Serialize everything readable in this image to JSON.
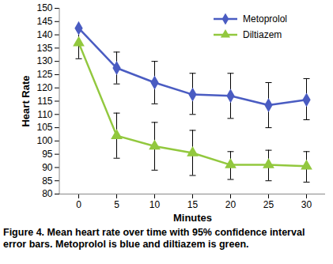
{
  "chart_data": {
    "type": "line",
    "caption": "Figure 4.  Mean heart rate over time with 95% confidence interval error bars. Metoprolol is blue and diltiazem is green.",
    "x_label": "Minutes",
    "y_label": "Heart Rate",
    "categories": [
      "0",
      "5",
      "10",
      "15",
      "20",
      "25",
      "30"
    ],
    "ylim": [
      80,
      150
    ],
    "yticks": [
      80,
      85,
      90,
      95,
      100,
      105,
      110,
      115,
      120,
      125,
      130,
      135,
      140,
      145,
      150
    ],
    "grid": false,
    "legend": "upper right",
    "series": [
      {
        "name": "Metoprolol",
        "color": "#4a5cc2",
        "marker": "diamond",
        "values": [
          142.5,
          127.5,
          122,
          117.5,
          117,
          113.5,
          115.5
        ],
        "error_low": [
          null,
          121.5,
          114,
          110,
          108.5,
          105,
          108
        ],
        "error_high": [
          null,
          133.5,
          130,
          125.5,
          125.5,
          122,
          123.5
        ]
      },
      {
        "name": "Diltiazem",
        "color": "#92c83e",
        "marker": "triangle",
        "values": [
          137,
          102,
          98,
          95.5,
          91,
          91,
          90.5
        ],
        "error_low": [
          131,
          93.5,
          89,
          87,
          85.5,
          85,
          84.5
        ],
        "error_high": [
          142.5,
          110.5,
          107,
          104,
          96,
          96.5,
          96
        ]
      }
    ]
  }
}
